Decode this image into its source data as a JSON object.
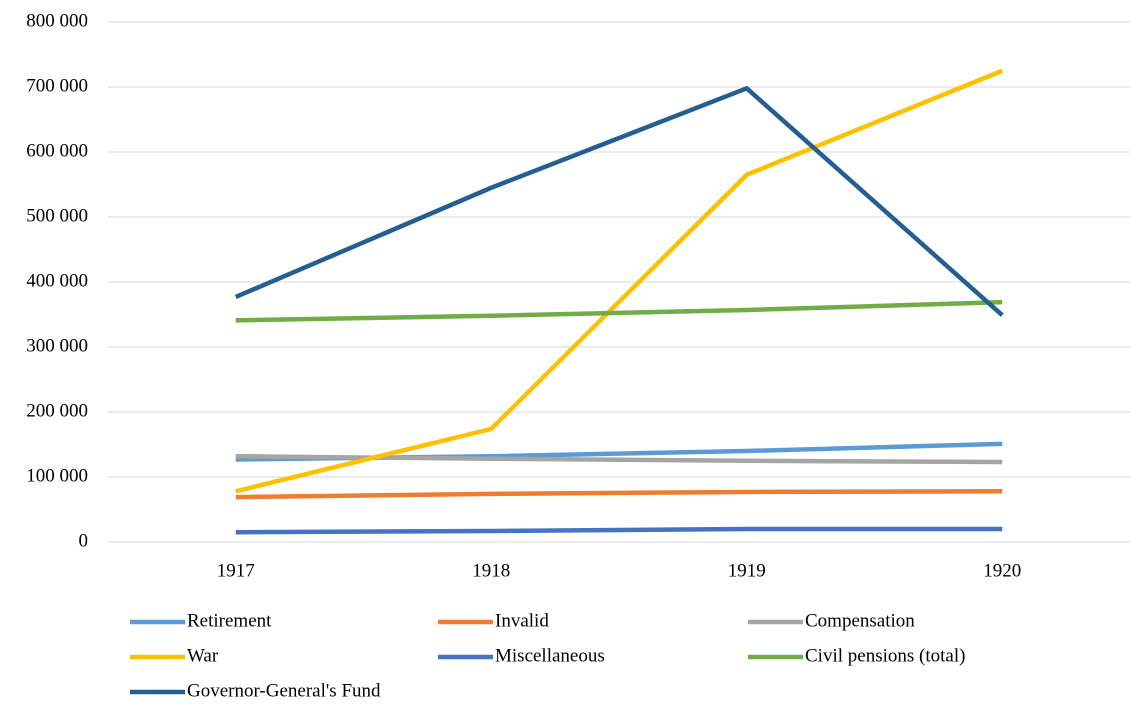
{
  "chart_data": {
    "type": "line",
    "categories": [
      "1917",
      "1918",
      "1919",
      "1920"
    ],
    "series": [
      {
        "name": "Retirement",
        "color": "#5b9bd5",
        "values": [
          127000,
          132000,
          140000,
          151000
        ]
      },
      {
        "name": "Invalid",
        "color": "#ed7d31",
        "values": [
          69000,
          74000,
          77000,
          78000
        ]
      },
      {
        "name": "Compensation",
        "color": "#a5a5a5",
        "values": [
          132000,
          128000,
          125000,
          123000
        ]
      },
      {
        "name": "War",
        "color": "#ffc000",
        "values": [
          78000,
          174000,
          565000,
          725000
        ]
      },
      {
        "name": "Miscellaneous",
        "color": "#4472c4",
        "values": [
          15000,
          17000,
          20000,
          20000
        ]
      },
      {
        "name": "Civil pensions (total)",
        "color": "#70ad47",
        "values": [
          341000,
          348000,
          357000,
          369000
        ]
      },
      {
        "name": "Governor-General's Fund",
        "color": "#255e91",
        "values": [
          377000,
          545000,
          698000,
          349000
        ]
      }
    ],
    "ylim": [
      0,
      800000
    ],
    "yticks": [
      0,
      {
        "value": 100000,
        "label": "100 000"
      },
      {
        "value": 200000,
        "label": "200 000"
      },
      {
        "value": 300000,
        "label": "300 000"
      },
      {
        "value": 400000,
        "label": "400 000"
      },
      {
        "value": 500000,
        "label": "500 000"
      },
      {
        "value": 600000,
        "label": "600 000"
      },
      {
        "value": 700000,
        "label": "700 000"
      },
      {
        "value": 800000,
        "label": "800 000"
      }
    ],
    "grid": true,
    "legend": "bottom"
  }
}
